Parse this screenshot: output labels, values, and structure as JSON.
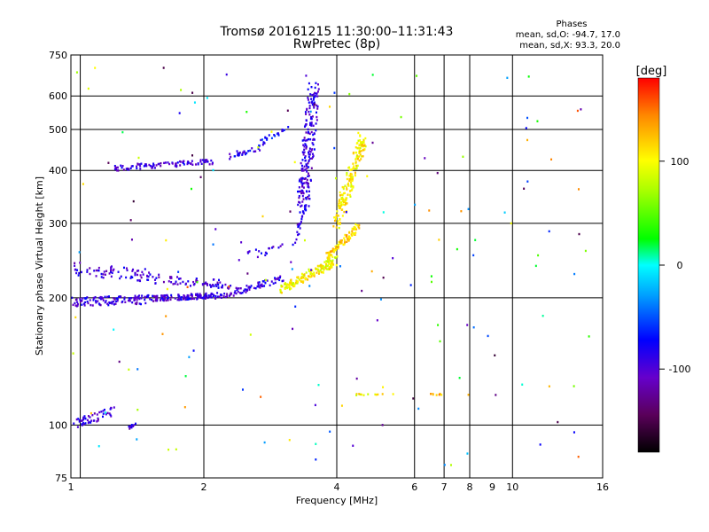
{
  "chart_data": {
    "type": "scatter",
    "title": "Tromsø 20161215 11:30:00–11:31:43",
    "subtitle": "RwPretec (8p)",
    "xlabel": "Frequency [MHz]",
    "ylabel": "Stationary phase Virtual Height [km]",
    "xscale": "log",
    "yscale": "log",
    "xlim": [
      1,
      16
    ],
    "ylim": [
      75,
      750
    ],
    "grid": true,
    "xticks": [
      1,
      2,
      4,
      6,
      7,
      8,
      9,
      10,
      16
    ],
    "xtick_labels": [
      "1",
      "2",
      "4",
      "6",
      "7",
      "8",
      "9",
      "10",
      "16"
    ],
    "yticks": [
      75,
      100,
      200,
      300,
      400,
      500,
      600,
      750
    ],
    "ytick_labels": [
      "75",
      "100",
      "200",
      "300",
      "400",
      "500",
      "600",
      "750"
    ],
    "x_gridlines": [
      1.05,
      2,
      4,
      6,
      7,
      8,
      10
    ],
    "y_gridlines": [
      100,
      200,
      300,
      400,
      500,
      600
    ],
    "stats": {
      "heading": "Phases",
      "o_line": "mean, sd,O: -94.7, 17.0",
      "x_line": "mean, sd,X:  93.3, 20.0"
    },
    "colorbar": {
      "label": "[deg]",
      "range": [
        -180,
        180
      ],
      "ticks": [
        100,
        0,
        -100
      ],
      "tick_labels": [
        "100",
        "0",
        "-100"
      ],
      "colormap": "rainbow (black-purple-blue-cyan-green-yellow-orange-red)"
    },
    "series": [
      {
        "role": "o-mode",
        "phase_mean": -94.7,
        "traces": [
          {
            "from": [
              1.0,
              195
            ],
            "to": [
              1.5,
              198
            ],
            "n": 120,
            "spread": 0.05,
            "phase": -95
          },
          {
            "from": [
              1.0,
              235
            ],
            "to": [
              1.5,
              225
            ],
            "n": 70,
            "spread": 0.07,
            "phase": -95
          },
          {
            "from": [
              1.5,
              199
            ],
            "to": [
              2.3,
              203
            ],
            "n": 140,
            "spread": 0.03,
            "phase": -95
          },
          {
            "from": [
              1.5,
              222
            ],
            "to": [
              2.3,
              215
            ],
            "n": 70,
            "spread": 0.05,
            "phase": -95
          },
          {
            "from": [
              2.3,
              205
            ],
            "to": [
              3.0,
              222
            ],
            "n": 60,
            "spread": 0.04,
            "phase": -90
          },
          {
            "from": [
              2.4,
              250
            ],
            "to": [
              3.2,
              265
            ],
            "n": 20,
            "spread": 0.05,
            "phase": -90
          },
          {
            "from": [
              3.2,
              270
            ],
            "to": [
              3.4,
              330
            ],
            "n": 25,
            "spread": 0.03,
            "phase": -95
          },
          {
            "from": [
              3.35,
              330
            ],
            "to": [
              3.55,
              620
            ],
            "n": 200,
            "spread": 0.1,
            "phase": -95
          },
          {
            "from": [
              1.25,
              405
            ],
            "to": [
              2.1,
              420
            ],
            "n": 100,
            "spread": 0.03,
            "phase": -95
          },
          {
            "from": [
              2.25,
              430
            ],
            "to": [
              2.7,
              455
            ],
            "n": 30,
            "spread": 0.03,
            "phase": -85
          },
          {
            "from": [
              2.7,
              465
            ],
            "to": [
              3.1,
              505
            ],
            "n": 25,
            "spread": 0.03,
            "phase": -75
          },
          {
            "from": [
              1.0,
              100
            ],
            "to": [
              1.25,
              108
            ],
            "n": 50,
            "spread": 0.05,
            "phase": -95
          },
          {
            "from": [
              1.35,
              98
            ],
            "to": [
              1.4,
              100
            ],
            "n": 10,
            "spread": 0.02,
            "phase": -95
          }
        ]
      },
      {
        "role": "x-mode",
        "phase_mean": 93.3,
        "traces": [
          {
            "from": [
              3.0,
              210
            ],
            "to": [
              4.0,
              245
            ],
            "n": 170,
            "spread": 0.05,
            "phase": 100
          },
          {
            "from": [
              3.8,
              250
            ],
            "to": [
              4.5,
              295
            ],
            "n": 100,
            "spread": 0.04,
            "phase": 120
          },
          {
            "from": [
              4.0,
              300
            ],
            "to": [
              4.6,
              480
            ],
            "n": 180,
            "spread": 0.08,
            "phase": 105
          },
          {
            "from": [
              4.2,
              118
            ],
            "to": [
              5.4,
              118
            ],
            "n": 12,
            "spread": 0.01,
            "phase": 100
          },
          {
            "from": [
              6.5,
              118
            ],
            "to": [
              6.9,
              118
            ],
            "n": 8,
            "spread": 0.01,
            "phase": 130
          }
        ]
      },
      {
        "role": "scattered-echoes",
        "traces": [
          {
            "from": [
              1.0,
              80
            ],
            "to": [
              15.0,
              700
            ],
            "n": 160,
            "spread": 0.0,
            "phase": 0
          }
        ]
      }
    ]
  }
}
